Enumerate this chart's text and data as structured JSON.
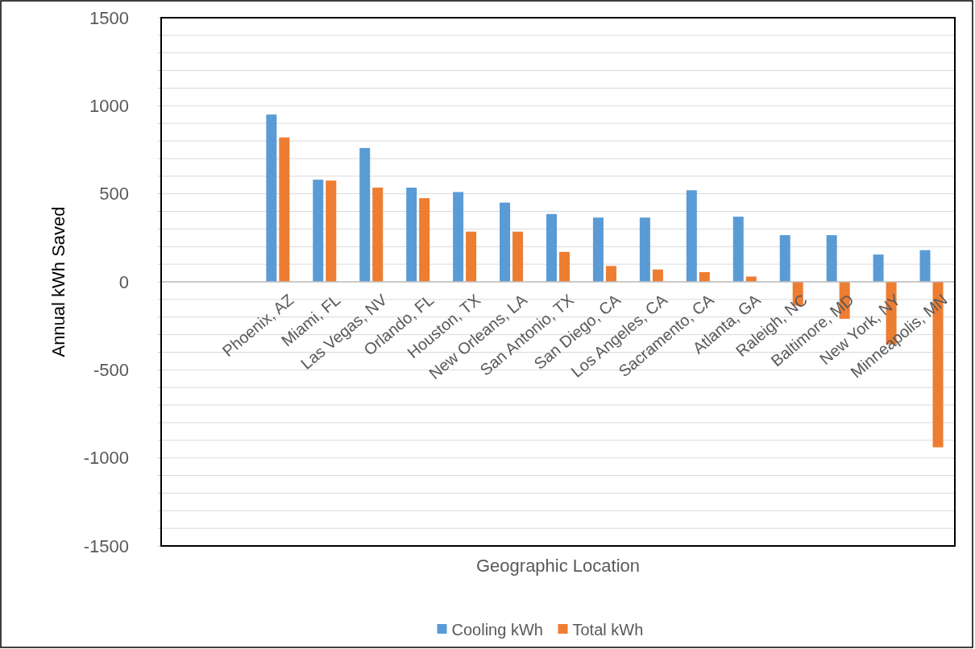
{
  "chart_data": {
    "type": "bar",
    "xlabel": "Geographic Location",
    "ylabel": "Annual kWh Saved",
    "categories": [
      null,
      null,
      "Phoenix, AZ",
      "Miami, FL",
      "Las Vegas, NV",
      "Orlando, FL",
      "Houston, TX",
      "New Orleans, LA",
      "San Antonio, TX",
      "San Diego, CA",
      "Los Angeles, CA",
      "Sacramento, CA",
      "Atlanta, GA",
      "Raleigh, NC",
      "Baltimore, MD",
      "New York, NY",
      "Minneapolis, MN"
    ],
    "series": [
      {
        "name": "Cooling kWh",
        "color": "#5b9bd5",
        "values": [
          null,
          null,
          950,
          580,
          760,
          535,
          510,
          450,
          385,
          365,
          365,
          520,
          370,
          265,
          265,
          155,
          180
        ]
      },
      {
        "name": "Total kWh",
        "color": "#ed7d31",
        "values": [
          null,
          null,
          820,
          575,
          535,
          475,
          285,
          285,
          170,
          90,
          70,
          55,
          30,
          -135,
          -210,
          -355,
          -940
        ]
      }
    ],
    "ylim": [
      -1500,
      1500
    ],
    "yticks": [
      -1500,
      {
        "value": -1400,
        "label": null
      },
      {
        "value": -1300,
        "label": null
      },
      {
        "value": -1200,
        "label": null
      },
      {
        "value": -1100,
        "label": null
      },
      -1000,
      {
        "value": -900,
        "label": null
      },
      {
        "value": -800,
        "label": null
      },
      {
        "value": -700,
        "label": null
      },
      {
        "value": -600,
        "label": null
      },
      -500,
      {
        "value": -400,
        "label": null
      },
      {
        "value": -300,
        "label": null
      },
      {
        "value": -200,
        "label": null
      },
      {
        "value": -100,
        "label": null
      },
      0,
      {
        "value": 100,
        "label": null
      },
      {
        "value": 200,
        "label": null
      },
      {
        "value": 300,
        "label": null
      },
      {
        "value": 400,
        "label": null
      },
      500,
      {
        "value": 600,
        "label": null
      },
      {
        "value": 700,
        "label": null
      },
      {
        "value": 800,
        "label": null
      },
      {
        "value": 900,
        "label": null
      },
      1000,
      {
        "value": 1100,
        "label": null
      },
      {
        "value": 1200,
        "label": null
      },
      {
        "value": 1300,
        "label": null
      },
      {
        "value": 1400,
        "label": null
      },
      1500
    ],
    "grid": true,
    "legend": "bottom"
  }
}
